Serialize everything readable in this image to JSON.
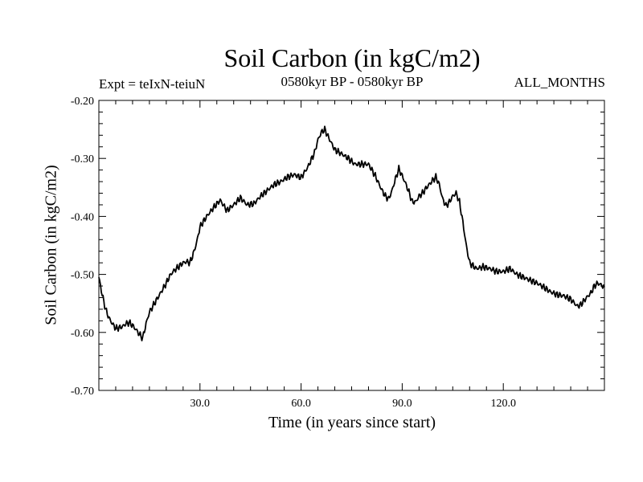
{
  "chart_data": {
    "type": "line",
    "title": "Soil Carbon (in kgC/m2)",
    "subtitle_left": "Expt = teIxN-teiuN",
    "subtitle_center": "0580kyr BP - 0580kyr BP",
    "subtitle_right": "ALL_MONTHS",
    "xlabel": "Time (in years since start)",
    "ylabel": "Soil Carbon (in kgC/m2)",
    "xlim": [
      0,
      150
    ],
    "ylim": [
      -0.7,
      -0.2
    ],
    "xticks": [
      30,
      60,
      90,
      120
    ],
    "xtick_labels": [
      "30.0",
      "60.0",
      "90.0",
      "120.0"
    ],
    "yticks": [
      -0.7,
      -0.6,
      -0.5,
      -0.4,
      -0.3,
      -0.2
    ],
    "ytick_labels": [
      "-0.70",
      "-0.60",
      "-0.50",
      "-0.40",
      "-0.30",
      "-0.20"
    ],
    "line_color": "#000000",
    "series": [
      {
        "name": "Soil Carbon",
        "x": [
          0,
          1,
          2,
          3,
          4,
          5,
          6,
          7,
          8,
          9,
          10,
          11,
          12,
          13,
          14,
          15,
          16,
          17,
          18,
          19,
          20,
          21,
          22,
          23,
          24,
          25,
          26,
          27,
          28,
          29,
          30,
          32,
          34,
          36,
          38,
          40,
          42,
          44,
          46,
          48,
          50,
          52,
          54,
          56,
          58,
          60,
          62,
          64,
          65,
          66,
          67,
          68,
          70,
          72,
          74,
          76,
          78,
          80,
          82,
          84,
          85,
          86,
          87,
          88,
          89,
          90,
          91,
          92,
          93,
          94,
          95,
          96,
          97,
          98,
          99,
          100,
          101,
          102,
          103,
          104,
          105,
          106,
          107,
          108,
          109,
          110,
          112,
          114,
          116,
          118,
          120,
          122,
          124,
          126,
          128,
          130,
          132,
          134,
          136,
          138,
          140,
          142,
          143,
          144,
          145,
          146,
          147,
          148,
          149,
          150
        ],
        "y": [
          -0.505,
          -0.535,
          -0.56,
          -0.575,
          -0.585,
          -0.593,
          -0.592,
          -0.59,
          -0.585,
          -0.583,
          -0.588,
          -0.595,
          -0.603,
          -0.61,
          -0.585,
          -0.565,
          -0.555,
          -0.545,
          -0.535,
          -0.525,
          -0.515,
          -0.503,
          -0.495,
          -0.49,
          -0.485,
          -0.48,
          -0.478,
          -0.48,
          -0.465,
          -0.445,
          -0.418,
          -0.4,
          -0.385,
          -0.372,
          -0.39,
          -0.38,
          -0.368,
          -0.38,
          -0.378,
          -0.365,
          -0.355,
          -0.345,
          -0.34,
          -0.332,
          -0.328,
          -0.333,
          -0.315,
          -0.29,
          -0.268,
          -0.255,
          -0.25,
          -0.262,
          -0.285,
          -0.292,
          -0.3,
          -0.31,
          -0.31,
          -0.31,
          -0.33,
          -0.355,
          -0.365,
          -0.37,
          -0.355,
          -0.335,
          -0.318,
          -0.33,
          -0.343,
          -0.358,
          -0.375,
          -0.375,
          -0.365,
          -0.36,
          -0.352,
          -0.345,
          -0.338,
          -0.332,
          -0.345,
          -0.37,
          -0.382,
          -0.375,
          -0.365,
          -0.36,
          -0.375,
          -0.41,
          -0.45,
          -0.48,
          -0.49,
          -0.487,
          -0.49,
          -0.495,
          -0.495,
          -0.49,
          -0.5,
          -0.505,
          -0.51,
          -0.515,
          -0.522,
          -0.53,
          -0.535,
          -0.537,
          -0.543,
          -0.555,
          -0.552,
          -0.545,
          -0.538,
          -0.532,
          -0.52,
          -0.515,
          -0.518,
          -0.522
        ]
      }
    ]
  }
}
